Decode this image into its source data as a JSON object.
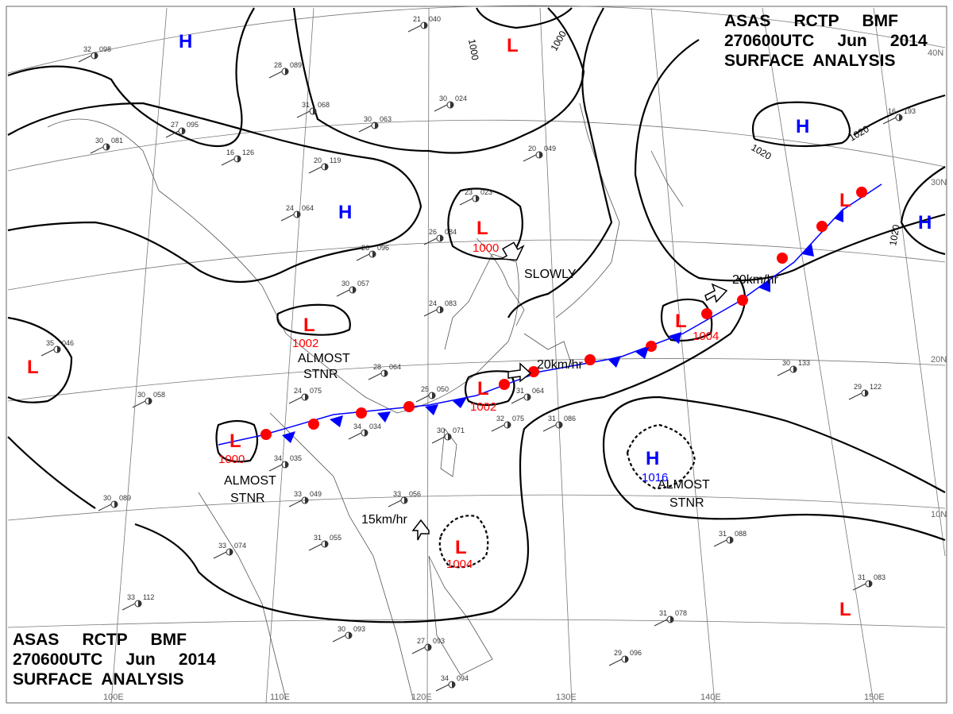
{
  "header": {
    "line1": "ASAS     RCTP     BMF",
    "line2": "270600UTC     Jun     2014",
    "line3": "SURFACE  ANALYSIS"
  },
  "colors": {
    "high": "#0000ff",
    "low": "#ff0000",
    "cold_front": "#0000ff",
    "warm_front": "#ff0000"
  },
  "centers": [
    {
      "type": "H",
      "pressure": ""
    },
    {
      "type": "H",
      "pressure": ""
    },
    {
      "type": "L",
      "pressure": ""
    },
    {
      "type": "L",
      "pressure": "1000"
    },
    {
      "type": "L",
      "pressure": "1002"
    },
    {
      "type": "L",
      "pressure": ""
    },
    {
      "type": "L",
      "pressure": "1002"
    },
    {
      "type": "L",
      "pressure": "1000"
    },
    {
      "type": "L",
      "pressure": "1004"
    },
    {
      "type": "L",
      "pressure": "1004"
    },
    {
      "type": "H",
      "pressure": ""
    },
    {
      "type": "H",
      "pressure": ""
    },
    {
      "type": "H",
      "pressure": "1016"
    },
    {
      "type": "L",
      "pressure": ""
    },
    {
      "type": "L",
      "pressure": ""
    }
  ],
  "annotations": {
    "slowly": "SLOWLY",
    "speed_ne": "20km/hr",
    "speed_mid": "20km/hr",
    "speed_sw": "15km/hr",
    "almost": "ALMOST",
    "stnr": "STNR"
  },
  "isobar_labels": [
    "1000",
    "1000",
    "1020",
    "1020",
    "1020"
  ],
  "lat_labels": [
    "40N",
    "30N",
    "20N",
    "10N"
  ],
  "lon_labels": [
    "100E",
    "110E",
    "120E",
    "130E",
    "140E",
    "150E"
  ],
  "stations": [
    {
      "t": "32",
      "p": "098"
    },
    {
      "t": "28",
      "p": "089"
    },
    {
      "t": "31",
      "p": "068"
    },
    {
      "t": "27",
      "p": "095"
    },
    {
      "t": "30",
      "p": "081"
    },
    {
      "t": "16",
      "p": "126"
    },
    {
      "t": "20",
      "p": "119"
    },
    {
      "t": "24",
      "p": "064"
    },
    {
      "t": "26",
      "p": "096"
    },
    {
      "t": "30",
      "p": "063"
    },
    {
      "t": "30",
      "p": "024"
    },
    {
      "t": "23",
      "p": "023"
    },
    {
      "t": "26",
      "p": "084"
    },
    {
      "t": "24",
      "p": "083"
    },
    {
      "t": "30",
      "p": "057"
    },
    {
      "t": "28",
      "p": "064"
    },
    {
      "t": "24",
      "p": "075"
    },
    {
      "t": "25",
      "p": "050"
    },
    {
      "t": "34",
      "p": "034"
    },
    {
      "t": "30",
      "p": "071"
    },
    {
      "t": "34",
      "p": "035"
    },
    {
      "t": "33",
      "p": "049"
    },
    {
      "t": "33",
      "p": "056"
    },
    {
      "t": "31",
      "p": "055"
    },
    {
      "t": "33",
      "p": "074"
    },
    {
      "t": "30",
      "p": "089"
    },
    {
      "t": "35",
      "p": "046"
    },
    {
      "t": "30",
      "p": "058"
    },
    {
      "t": "31",
      "p": "064"
    },
    {
      "t": "32",
      "p": "075"
    },
    {
      "t": "31",
      "p": "086"
    },
    {
      "t": "30",
      "p": "133"
    },
    {
      "t": "29",
      "p": "122"
    },
    {
      "t": "16",
      "p": "193"
    },
    {
      "t": "31",
      "p": "088"
    },
    {
      "t": "31",
      "p": "083"
    },
    {
      "t": "31",
      "p": "078"
    },
    {
      "t": "29",
      "p": "096"
    },
    {
      "t": "30",
      "p": "093"
    },
    {
      "t": "27",
      "p": "093"
    },
    {
      "t": "34",
      "p": "094"
    },
    {
      "t": "33",
      "p": "112"
    },
    {
      "t": "21",
      "p": "040"
    },
    {
      "t": "20",
      "p": "049"
    }
  ]
}
